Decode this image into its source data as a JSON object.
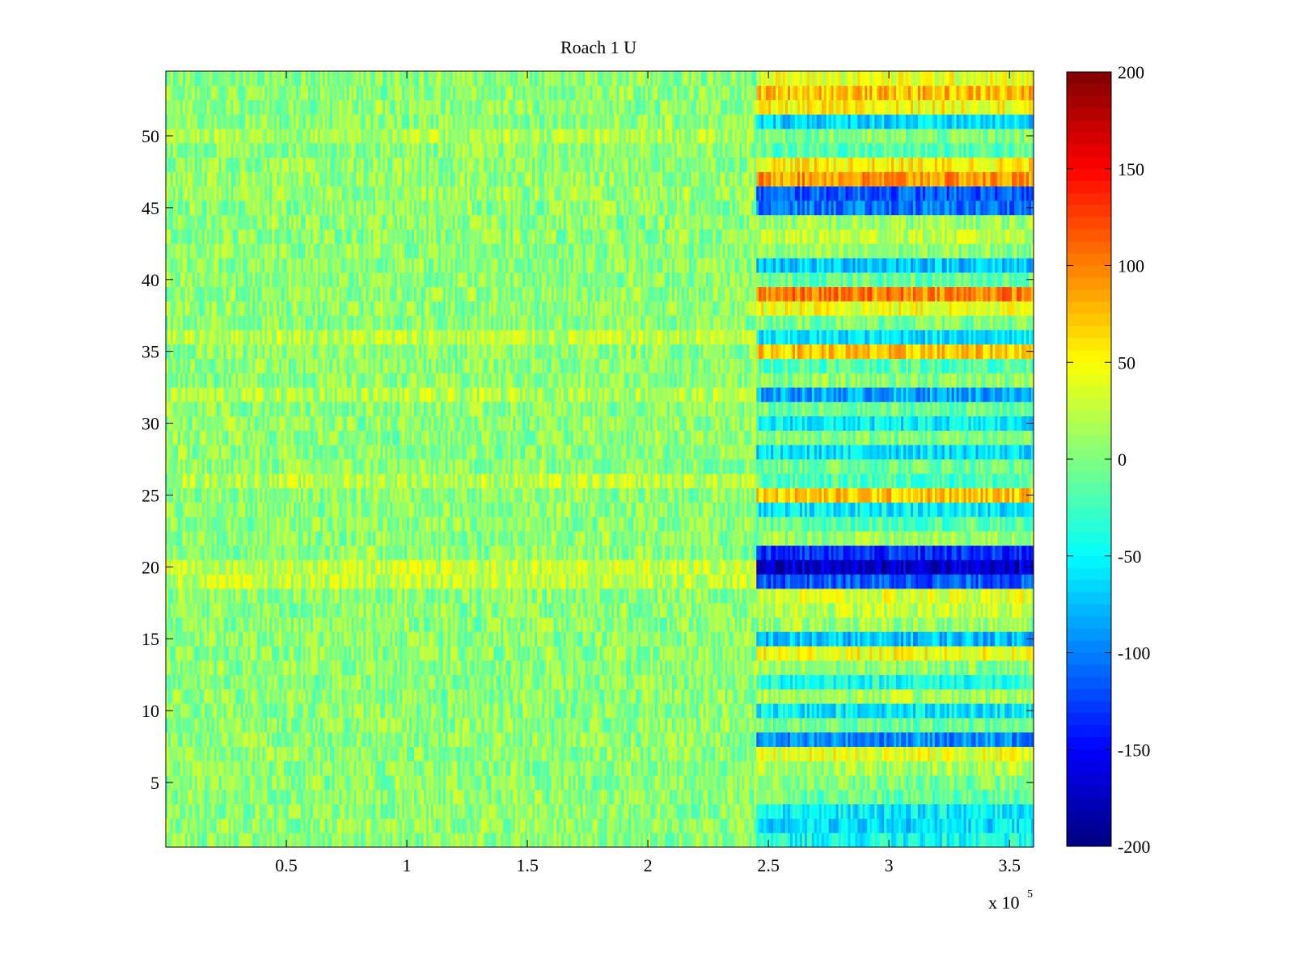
{
  "chart_data": {
    "type": "heatmap",
    "title": "Roach 1 U",
    "x_exponent_label": {
      "base": "x 10",
      "exponent": "5"
    },
    "xlim": [
      0,
      3.6
    ],
    "ylim": [
      0.5,
      54.5
    ],
    "x_ticks": [
      {
        "value": 0.5,
        "label": "0.5"
      },
      {
        "value": 1,
        "label": "1"
      },
      {
        "value": 1.5,
        "label": "1.5"
      },
      {
        "value": 2,
        "label": "2"
      },
      {
        "value": 2.5,
        "label": "2.5"
      },
      {
        "value": 3,
        "label": "3"
      },
      {
        "value": 3.5,
        "label": "3.5"
      }
    ],
    "y_ticks": [
      {
        "value": 5,
        "label": "5"
      },
      {
        "value": 10,
        "label": "10"
      },
      {
        "value": 15,
        "label": "15"
      },
      {
        "value": 20,
        "label": "20"
      },
      {
        "value": 25,
        "label": "25"
      },
      {
        "value": 30,
        "label": "30"
      },
      {
        "value": 35,
        "label": "35"
      },
      {
        "value": 40,
        "label": "40"
      },
      {
        "value": 45,
        "label": "45"
      },
      {
        "value": 50,
        "label": "50"
      }
    ],
    "colorbar": {
      "colormap": "jet",
      "clim": [
        -200,
        200
      ],
      "ticks": [
        {
          "value": 200,
          "label": "200"
        },
        {
          "value": 150,
          "label": "150"
        },
        {
          "value": 100,
          "label": "100"
        },
        {
          "value": 50,
          "label": "50"
        },
        {
          "value": 0,
          "label": "0"
        },
        {
          "value": -50,
          "label": "-50"
        },
        {
          "value": -100,
          "label": "-100"
        },
        {
          "value": -150,
          "label": "-150"
        },
        {
          "value": -200,
          "label": "-200"
        }
      ]
    },
    "rows": 54,
    "regime_change_x": 2.45,
    "row_levels_before": {
      "2": 8,
      "20": 28,
      "19": 25,
      "26": 22,
      "32": 20,
      "36": 24,
      "46": 10,
      "47": 8,
      "50": 18
    },
    "row_levels_after": {
      "1": -45,
      "2": -60,
      "3": -55,
      "4": -10,
      "5": 0,
      "6": 15,
      "7": 40,
      "8": -95,
      "9": -5,
      "10": -55,
      "11": 15,
      "12": -40,
      "13": 5,
      "14": 45,
      "15": -75,
      "16": 10,
      "17": 25,
      "18": 35,
      "19": -115,
      "20": -170,
      "21": -135,
      "22": 10,
      "23": -15,
      "24": -55,
      "25": 70,
      "26": -20,
      "27": -5,
      "28": -60,
      "29": 0,
      "30": -55,
      "31": -10,
      "32": -85,
      "33": 5,
      "34": -15,
      "35": 70,
      "36": -60,
      "37": 0,
      "38": 45,
      "39": 100,
      "40": -10,
      "41": -70,
      "42": 5,
      "43": 25,
      "44": 10,
      "45": -105,
      "46": -115,
      "47": 90,
      "48": 55,
      "49": -15,
      "50": 0,
      "51": -65,
      "52": 50,
      "53": 75,
      "54": 40
    },
    "noise_amplitude": 30,
    "grid": false
  }
}
